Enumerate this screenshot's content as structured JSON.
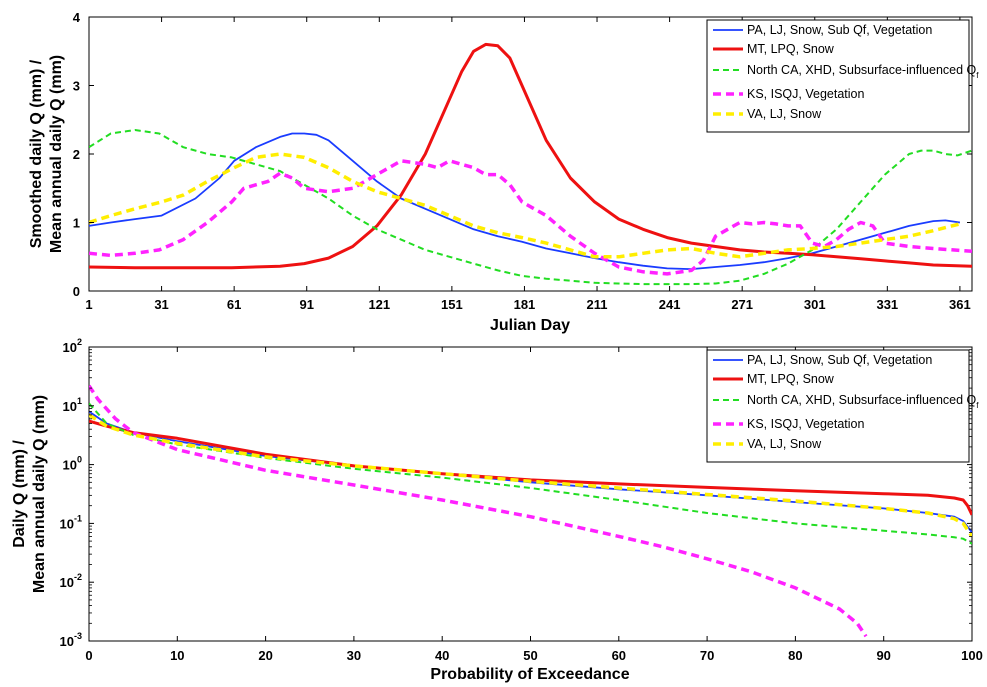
{
  "colors": {
    "PA": "#1a3cff",
    "MT": "#ee1111",
    "CA": "#22dd22",
    "KS": "#ff22ff",
    "VA": "#ffee00"
  },
  "chart_data": [
    {
      "type": "line",
      "xlabel": "Julian Day",
      "ylabel_line1": "Smoothed daily Q (mm) /",
      "ylabel_line2": "Mean annual daily Q (mm)",
      "xlim": [
        1,
        366
      ],
      "ylim": [
        0,
        4
      ],
      "xticks": [
        1,
        31,
        61,
        91,
        121,
        151,
        181,
        211,
        241,
        271,
        301,
        331,
        361
      ],
      "yticks": [
        0,
        1,
        2,
        3,
        4
      ],
      "grid": false,
      "legend_position": "top-right",
      "series": [
        {
          "key": "PA",
          "name": "PA, LJ, Snow, Sub Qf, Vegetation",
          "style": "solid",
          "x": [
            1,
            10,
            20,
            31,
            45,
            55,
            61,
            70,
            80,
            85,
            90,
            95,
            100,
            110,
            120,
            130,
            140,
            150,
            160,
            170,
            180,
            190,
            200,
            210,
            220,
            230,
            240,
            250,
            260,
            270,
            280,
            290,
            300,
            310,
            320,
            330,
            340,
            350,
            355,
            361
          ],
          "y": [
            0.95,
            1.0,
            1.05,
            1.1,
            1.35,
            1.65,
            1.9,
            2.1,
            2.25,
            2.3,
            2.3,
            2.28,
            2.2,
            1.9,
            1.6,
            1.35,
            1.2,
            1.05,
            0.9,
            0.8,
            0.72,
            0.62,
            0.55,
            0.48,
            0.42,
            0.37,
            0.33,
            0.32,
            0.35,
            0.38,
            0.42,
            0.48,
            0.55,
            0.65,
            0.75,
            0.85,
            0.95,
            1.02,
            1.03,
            1.0
          ]
        },
        {
          "key": "MT",
          "name": "MT, LPQ, Snow",
          "style": "solid-thick",
          "x": [
            1,
            20,
            40,
            60,
            80,
            90,
            100,
            110,
            120,
            130,
            140,
            150,
            155,
            160,
            165,
            170,
            175,
            180,
            190,
            200,
            210,
            220,
            230,
            240,
            250,
            260,
            270,
            280,
            290,
            300,
            310,
            320,
            330,
            340,
            350,
            366
          ],
          "y": [
            0.35,
            0.34,
            0.34,
            0.34,
            0.36,
            0.4,
            0.48,
            0.65,
            0.95,
            1.4,
            2.0,
            2.8,
            3.2,
            3.5,
            3.6,
            3.58,
            3.4,
            3.0,
            2.2,
            1.65,
            1.3,
            1.05,
            0.9,
            0.78,
            0.7,
            0.65,
            0.6,
            0.57,
            0.55,
            0.53,
            0.5,
            0.47,
            0.44,
            0.41,
            0.38,
            0.36
          ]
        },
        {
          "key": "CA",
          "name": "North CA, XHD, Subsurface-influenced Q",
          "name_sub": "f",
          "style": "dashed",
          "x": [
            1,
            10,
            20,
            30,
            40,
            50,
            60,
            70,
            80,
            90,
            100,
            110,
            120,
            130,
            140,
            150,
            160,
            170,
            180,
            190,
            200,
            210,
            220,
            230,
            240,
            250,
            260,
            270,
            280,
            290,
            300,
            310,
            320,
            330,
            340,
            345,
            350,
            355,
            360,
            366
          ],
          "y": [
            2.1,
            2.3,
            2.35,
            2.3,
            2.1,
            2.0,
            1.95,
            1.85,
            1.75,
            1.55,
            1.35,
            1.1,
            0.9,
            0.75,
            0.6,
            0.5,
            0.4,
            0.3,
            0.22,
            0.18,
            0.15,
            0.12,
            0.11,
            0.1,
            0.1,
            0.1,
            0.11,
            0.15,
            0.25,
            0.4,
            0.6,
            0.9,
            1.3,
            1.7,
            2.0,
            2.05,
            2.05,
            2.0,
            1.98,
            2.05
          ]
        },
        {
          "key": "KS",
          "name": "KS, ISQJ, Vegetation",
          "style": "dashed-thick",
          "x": [
            1,
            10,
            20,
            30,
            40,
            50,
            60,
            65,
            70,
            75,
            80,
            85,
            90,
            100,
            110,
            120,
            130,
            140,
            145,
            150,
            155,
            160,
            165,
            170,
            175,
            180,
            190,
            200,
            210,
            220,
            230,
            240,
            250,
            255,
            260,
            265,
            270,
            275,
            280,
            285,
            290,
            295,
            300,
            305,
            310,
            315,
            320,
            325,
            330,
            340,
            350,
            366
          ],
          "y": [
            0.55,
            0.52,
            0.55,
            0.6,
            0.75,
            1.0,
            1.3,
            1.5,
            1.55,
            1.6,
            1.72,
            1.65,
            1.5,
            1.45,
            1.5,
            1.7,
            1.9,
            1.85,
            1.8,
            1.9,
            1.85,
            1.8,
            1.7,
            1.7,
            1.55,
            1.3,
            1.1,
            0.8,
            0.55,
            0.35,
            0.28,
            0.25,
            0.3,
            0.45,
            0.8,
            0.9,
            1.0,
            0.98,
            1.0,
            0.98,
            0.95,
            0.95,
            0.7,
            0.65,
            0.75,
            0.9,
            1.0,
            0.95,
            0.7,
            0.65,
            0.62,
            0.58
          ]
        },
        {
          "key": "VA",
          "name": "VA, LJ, Snow",
          "style": "dashed-thick",
          "x": [
            1,
            10,
            20,
            31,
            40,
            50,
            61,
            70,
            80,
            90,
            100,
            110,
            120,
            130,
            140,
            150,
            160,
            170,
            180,
            190,
            200,
            210,
            220,
            230,
            240,
            250,
            260,
            270,
            280,
            290,
            300,
            310,
            320,
            330,
            340,
            350,
            361
          ],
          "y": [
            1.0,
            1.1,
            1.2,
            1.3,
            1.4,
            1.6,
            1.8,
            1.95,
            2.0,
            1.95,
            1.8,
            1.6,
            1.45,
            1.35,
            1.25,
            1.1,
            0.95,
            0.85,
            0.78,
            0.7,
            0.6,
            0.5,
            0.5,
            0.55,
            0.6,
            0.62,
            0.55,
            0.5,
            0.55,
            0.6,
            0.62,
            0.65,
            0.7,
            0.75,
            0.8,
            0.88,
            0.98
          ]
        }
      ]
    },
    {
      "type": "line",
      "xlabel": "Probability of Exceedance",
      "ylabel_line1": "Daily Q (mm) /",
      "ylabel_line2": "Mean annual daily Q (mm)",
      "xlim": [
        0,
        100
      ],
      "ylim": [
        0.001,
        100
      ],
      "yscale": "log",
      "xticks": [
        0,
        10,
        20,
        30,
        40,
        50,
        60,
        70,
        80,
        90,
        100
      ],
      "yticks": [
        {
          "value": 0.001,
          "base": "10",
          "exp": "-3"
        },
        {
          "value": 0.01,
          "base": "10",
          "exp": "-2"
        },
        {
          "value": 0.1,
          "base": "10",
          "exp": "-1"
        },
        {
          "value": 1,
          "base": "10",
          "exp": "0"
        },
        {
          "value": 10,
          "base": "10",
          "exp": "1"
        },
        {
          "value": 100,
          "base": "10",
          "exp": "2"
        }
      ],
      "grid": false,
      "legend_position": "top-right",
      "series": [
        {
          "key": "PA",
          "name": "PA, LJ, Snow, Sub Qf, Vegetation",
          "style": "solid",
          "x": [
            0,
            2,
            5,
            10,
            20,
            30,
            40,
            50,
            60,
            70,
            80,
            90,
            95,
            98,
            99,
            100
          ],
          "y": [
            8,
            5,
            3.5,
            2.5,
            1.4,
            0.95,
            0.7,
            0.5,
            0.38,
            0.3,
            0.23,
            0.18,
            0.15,
            0.13,
            0.11,
            0.07
          ]
        },
        {
          "key": "MT",
          "name": "MT, LPQ, Snow",
          "style": "solid-thick",
          "x": [
            0,
            2,
            5,
            10,
            20,
            30,
            40,
            50,
            60,
            70,
            80,
            90,
            95,
            98,
            99,
            99.5,
            100
          ],
          "y": [
            5.5,
            4.5,
            3.5,
            2.8,
            1.5,
            0.95,
            0.7,
            0.55,
            0.47,
            0.41,
            0.36,
            0.32,
            0.3,
            0.27,
            0.25,
            0.2,
            0.14
          ]
        },
        {
          "key": "CA",
          "name": "North CA, XHD, Subsurface-influenced Q",
          "name_sub": "f",
          "style": "dashed",
          "x": [
            0,
            2,
            5,
            10,
            20,
            30,
            40,
            50,
            60,
            70,
            80,
            90,
            95,
            98,
            99,
            100
          ],
          "y": [
            11,
            5,
            3.2,
            2.2,
            1.3,
            0.85,
            0.6,
            0.4,
            0.25,
            0.15,
            0.1,
            0.075,
            0.065,
            0.058,
            0.055,
            0.045
          ]
        },
        {
          "key": "KS",
          "name": "KS, ISQJ, Vegetation",
          "style": "dashed-thick",
          "x": [
            0,
            1,
            3,
            5,
            10,
            20,
            30,
            40,
            50,
            60,
            65,
            70,
            75,
            80,
            85,
            87,
            88
          ],
          "y": [
            22,
            13,
            6,
            3.5,
            1.8,
            0.8,
            0.45,
            0.25,
            0.13,
            0.06,
            0.04,
            0.025,
            0.015,
            0.008,
            0.0035,
            0.002,
            0.0012
          ]
        },
        {
          "key": "VA",
          "name": "VA, LJ, Snow",
          "style": "dashed-thick",
          "x": [
            0,
            2,
            5,
            10,
            20,
            30,
            40,
            50,
            60,
            70,
            80,
            90,
            95,
            98,
            99,
            100
          ],
          "y": [
            7,
            4.5,
            3.2,
            2.3,
            1.35,
            0.95,
            0.7,
            0.52,
            0.4,
            0.31,
            0.24,
            0.18,
            0.15,
            0.12,
            0.1,
            0.06
          ]
        }
      ]
    }
  ]
}
